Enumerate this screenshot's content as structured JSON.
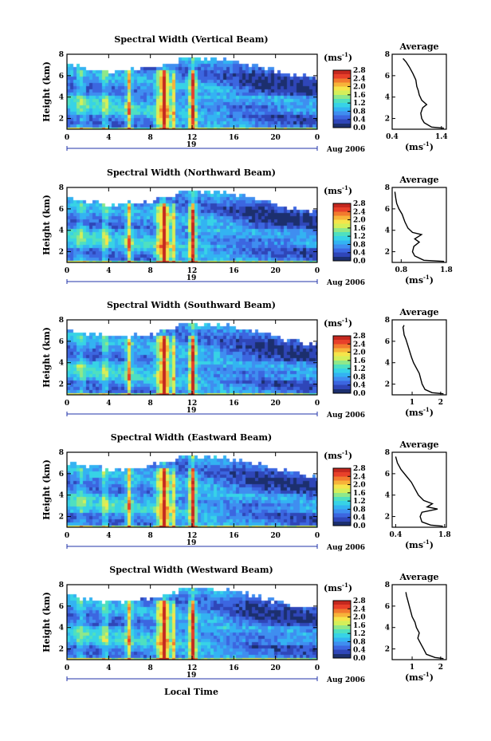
{
  "colors": {
    "colormap": [
      "#1c2f6e",
      "#2f46b8",
      "#3c66e0",
      "#3f8ef0",
      "#33b3f2",
      "#37d3e6",
      "#4fe0c0",
      "#8fe88a",
      "#d4ef5a",
      "#f6e44a",
      "#f7b33a",
      "#f27a2e",
      "#e8402a",
      "#c4281f"
    ]
  },
  "chart_data": [
    {
      "type": "heatmap",
      "beam": "vertical",
      "title": "Spectral Width (Vertical Beam)",
      "ylabel": "Height (km)",
      "ylim": [
        1,
        8
      ],
      "yticks": [
        "2",
        "4",
        "6",
        "8"
      ],
      "xlim": [
        0,
        24
      ],
      "xticks": [
        "0",
        "4",
        "8",
        "12",
        "16",
        "20",
        "0"
      ],
      "date_day": "19",
      "date_month": "Aug 2006",
      "colorbar": {
        "unit_pre": "(ms",
        "unit_exp": "-1",
        "unit_post": ")",
        "ticks": [
          "0.0",
          "0.4",
          "0.8",
          "1.2",
          "1.6",
          "2.0",
          "2.4",
          "2.8"
        ],
        "range": [
          0,
          2.8
        ]
      },
      "profile": {
        "title": "Average",
        "xlabel_pre": "(ms",
        "xlabel_exp": "-1",
        "xlabel_post": ")",
        "xlim": [
          0.4,
          1.5
        ],
        "xticks": [
          "0.4",
          "1.4"
        ],
        "yticks": [
          "2",
          "4",
          "6",
          "8"
        ],
        "points": [
          [
            1.45,
            1.1
          ],
          [
            1.2,
            1.2
          ],
          [
            1.05,
            1.6
          ],
          [
            1.0,
            2.0
          ],
          [
            0.98,
            2.5
          ],
          [
            1.02,
            3.0
          ],
          [
            1.1,
            3.3
          ],
          [
            1.0,
            3.7
          ],
          [
            0.95,
            4.2
          ],
          [
            0.93,
            4.6
          ],
          [
            0.9,
            5.0
          ],
          [
            0.88,
            5.6
          ],
          [
            0.82,
            6.2
          ],
          [
            0.75,
            6.8
          ],
          [
            0.68,
            7.3
          ],
          [
            0.62,
            7.6
          ]
        ]
      }
    },
    {
      "type": "heatmap",
      "beam": "northward",
      "title": "Spectral Width (Northward Beam)",
      "ylabel": "Height (km)",
      "ylim": [
        1,
        8
      ],
      "yticks": [
        "2",
        "4",
        "6",
        "8"
      ],
      "xlim": [
        0,
        24
      ],
      "xticks": [
        "0",
        "4",
        "8",
        "12",
        "16",
        "20",
        "0"
      ],
      "date_day": "19",
      "date_month": "Aug 2006",
      "colorbar": {
        "unit_pre": "(ms",
        "unit_exp": "-1",
        "unit_post": ")",
        "ticks": [
          "0.0",
          "0.4",
          "0.8",
          "1.2",
          "1.6",
          "2.0",
          "2.4",
          "2.8"
        ],
        "range": [
          0,
          2.8
        ]
      },
      "profile": {
        "title": "Average",
        "xlabel_pre": "(ms",
        "xlabel_exp": "-1",
        "xlabel_post": ")",
        "xlim": [
          0.6,
          1.8
        ],
        "xticks": [
          "0.8",
          "1.8"
        ],
        "yticks": [
          "2",
          "4",
          "6",
          "8"
        ],
        "points": [
          [
            1.75,
            1.1
          ],
          [
            1.3,
            1.2
          ],
          [
            1.1,
            1.6
          ],
          [
            1.05,
            2.0
          ],
          [
            1.08,
            2.5
          ],
          [
            1.2,
            2.9
          ],
          [
            1.1,
            3.2
          ],
          [
            1.25,
            3.6
          ],
          [
            1.05,
            3.8
          ],
          [
            0.95,
            4.2
          ],
          [
            0.88,
            4.8
          ],
          [
            0.82,
            5.5
          ],
          [
            0.75,
            6.0
          ],
          [
            0.7,
            6.5
          ],
          [
            0.68,
            7.0
          ],
          [
            0.66,
            7.6
          ]
        ]
      }
    },
    {
      "type": "heatmap",
      "beam": "southward",
      "title": "Spectral Width (Southward Beam)",
      "ylabel": "Height (km)",
      "ylim": [
        1,
        8
      ],
      "yticks": [
        "2",
        "4",
        "6",
        "8"
      ],
      "xlim": [
        0,
        24
      ],
      "xticks": [
        "0",
        "4",
        "8",
        "12",
        "16",
        "20",
        "0"
      ],
      "date_day": "19",
      "date_month": "Aug 2006",
      "colorbar": {
        "unit_pre": "(ms",
        "unit_exp": "-1",
        "unit_post": ")",
        "ticks": [
          "0.0",
          "0.4",
          "0.8",
          "1.2",
          "1.6",
          "2.0",
          "2.4",
          "2.8"
        ],
        "range": [
          0,
          2.8
        ]
      },
      "profile": {
        "title": "Average",
        "xlabel_pre": "(ms",
        "xlabel_exp": "-1",
        "xlabel_post": ")",
        "xlim": [
          0.3,
          2.2
        ],
        "xticks": [
          "1",
          "2"
        ],
        "yticks": [
          "2",
          "4",
          "6",
          "8"
        ],
        "points": [
          [
            2.1,
            1.1
          ],
          [
            1.7,
            1.2
          ],
          [
            1.45,
            1.5
          ],
          [
            1.35,
            2.0
          ],
          [
            1.3,
            2.5
          ],
          [
            1.25,
            3.0
          ],
          [
            1.15,
            3.5
          ],
          [
            1.05,
            4.0
          ],
          [
            0.98,
            4.5
          ],
          [
            0.92,
            5.0
          ],
          [
            0.85,
            5.6
          ],
          [
            0.78,
            6.2
          ],
          [
            0.72,
            6.6
          ],
          [
            0.7,
            7.0
          ],
          [
            0.68,
            7.3
          ],
          [
            0.72,
            7.5
          ]
        ]
      }
    },
    {
      "type": "heatmap",
      "beam": "eastward",
      "title": "Spectral Width (Eastward Beam)",
      "ylabel": "Height (km)",
      "ylim": [
        1,
        8
      ],
      "yticks": [
        "2",
        "4",
        "6",
        "8"
      ],
      "xlim": [
        0,
        24
      ],
      "xticks": [
        "0",
        "4",
        "8",
        "12",
        "16",
        "20",
        "0"
      ],
      "date_day": "19",
      "date_month": "Aug 2006",
      "colorbar": {
        "unit_pre": "(ms",
        "unit_exp": "-1",
        "unit_post": ")",
        "ticks": [
          "0.0",
          "0.4",
          "0.8",
          "1.2",
          "1.6",
          "2.0",
          "2.4",
          "2.8"
        ],
        "range": [
          0,
          2.8
        ]
      },
      "profile": {
        "title": "Average",
        "xlabel_pre": "(ms",
        "xlabel_exp": "-1",
        "xlabel_post": ")",
        "xlim": [
          0.3,
          1.85
        ],
        "xticks": [
          "0.4",
          "1.8"
        ],
        "yticks": [
          "2",
          "4",
          "6",
          "8"
        ],
        "points": [
          [
            1.75,
            1.1
          ],
          [
            1.4,
            1.2
          ],
          [
            1.15,
            1.5
          ],
          [
            1.1,
            2.0
          ],
          [
            1.15,
            2.4
          ],
          [
            1.6,
            2.7
          ],
          [
            1.3,
            2.9
          ],
          [
            1.45,
            3.2
          ],
          [
            1.2,
            3.5
          ],
          [
            1.05,
            4.0
          ],
          [
            0.95,
            4.6
          ],
          [
            0.85,
            5.2
          ],
          [
            0.7,
            5.8
          ],
          [
            0.55,
            6.4
          ],
          [
            0.45,
            7.0
          ],
          [
            0.4,
            7.6
          ]
        ]
      }
    },
    {
      "type": "heatmap",
      "beam": "westward",
      "title": "Spectral Width (Westward Beam)",
      "ylabel": "Height (km)",
      "ylim": [
        1,
        8
      ],
      "yticks": [
        "2",
        "4",
        "6",
        "8"
      ],
      "xlim": [
        0,
        24
      ],
      "xticks": [
        "0",
        "4",
        "8",
        "12",
        "16",
        "20",
        "0"
      ],
      "date_day": "19",
      "date_month": "Aug 2006",
      "xlabel": "Local Time",
      "colorbar": {
        "unit_pre": "(ms",
        "unit_exp": "-1",
        "unit_post": ")",
        "ticks": [
          "0.0",
          "0.4",
          "0.8",
          "1.2",
          "1.6",
          "2.0",
          "2.4",
          "2.8"
        ],
        "range": [
          0,
          2.8
        ]
      },
      "profile": {
        "title": "Average",
        "xlabel_pre": "(ms",
        "xlabel_exp": "-1",
        "xlabel_post": ")",
        "xlim": [
          0.3,
          2.2
        ],
        "xticks": [
          "1",
          "2"
        ],
        "yticks": [
          "2",
          "4",
          "6",
          "8"
        ],
        "points": [
          [
            2.1,
            1.1
          ],
          [
            1.8,
            1.2
          ],
          [
            1.5,
            1.5
          ],
          [
            1.4,
            2.0
          ],
          [
            1.3,
            2.5
          ],
          [
            1.2,
            3.0
          ],
          [
            1.25,
            3.5
          ],
          [
            1.15,
            4.0
          ],
          [
            1.1,
            4.5
          ],
          [
            1.0,
            5.0
          ],
          [
            0.95,
            5.5
          ],
          [
            0.9,
            6.0
          ],
          [
            0.85,
            6.5
          ],
          [
            0.8,
            7.0
          ],
          [
            0.78,
            7.3
          ]
        ]
      }
    }
  ]
}
